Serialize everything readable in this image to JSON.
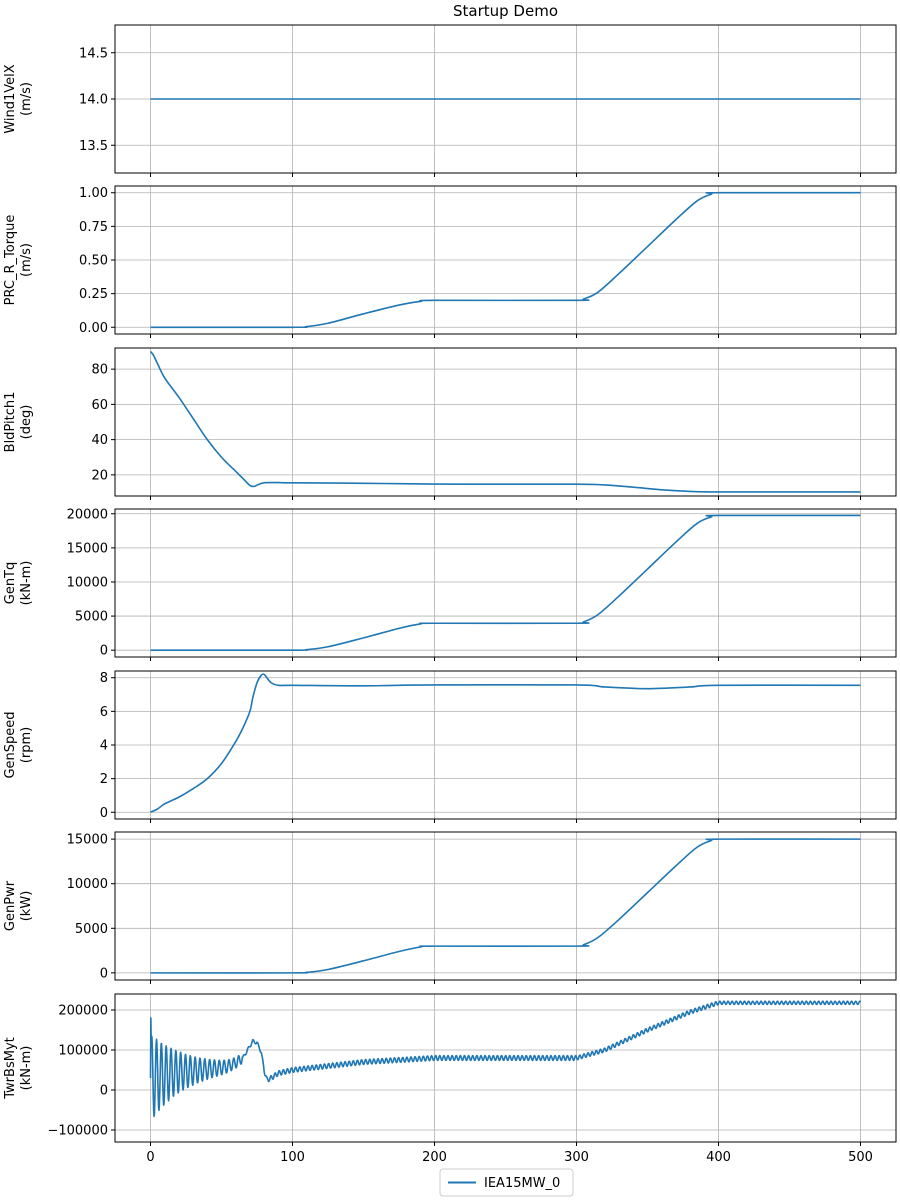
{
  "title": "Startup Demo",
  "legend": {
    "entries": [
      "IEA15MW_0"
    ],
    "position": "bottom-center"
  },
  "chart_data": {
    "type": "line",
    "title": "Startup Demo",
    "xlim": [
      -25,
      525
    ],
    "xticks": [
      0,
      100,
      200,
      300,
      400,
      500
    ],
    "grid": true,
    "series_color": "#1f77b4",
    "panels": [
      {
        "id": "wind",
        "ylabel": [
          "Wind1VelX",
          "(m/s)"
        ],
        "ylim": [
          13.2,
          14.8
        ],
        "yticks": [
          13.5,
          14.0,
          14.5
        ],
        "ytick_labels": [
          "13.5",
          "14.0",
          "14.5"
        ],
        "series": [
          {
            "name": "IEA15MW_0",
            "x": [
              0,
              500
            ],
            "y": [
              14.0,
              14.0
            ]
          }
        ]
      },
      {
        "id": "prc",
        "ylabel": [
          "PRC_R_Torque",
          "(m/s)"
        ],
        "ylim": [
          -0.05,
          1.05
        ],
        "yticks": [
          0.0,
          0.25,
          0.5,
          0.75,
          1.0
        ],
        "ytick_labels": [
          "0.00",
          "0.25",
          "0.50",
          "0.75",
          "1.00"
        ],
        "series": [
          {
            "name": "IEA15MW_0",
            "x": [
              0,
              100,
              110,
              125,
              150,
              175,
              190,
              200,
              300,
              305,
              315,
              330,
              350,
              370,
              385,
              395,
              400,
              500
            ],
            "y": [
              0,
              0,
              0.005,
              0.03,
              0.1,
              0.165,
              0.192,
              0.2,
              0.2,
              0.21,
              0.26,
              0.4,
              0.6,
              0.8,
              0.94,
              0.99,
              1.0,
              1.0
            ]
          }
        ]
      },
      {
        "id": "pitch",
        "ylabel": [
          "BldPitch1",
          "(deg)"
        ],
        "ylim": [
          8,
          92
        ],
        "yticks": [
          20,
          40,
          60,
          80
        ],
        "ytick_labels": [
          "20",
          "40",
          "60",
          "80"
        ],
        "series": [
          {
            "name": "IEA15MW_0",
            "x": [
              0,
              2,
              5,
              10,
              20,
              30,
              40,
              50,
              60,
              65,
              70,
              73,
              76,
              80,
              90,
              100,
              150,
              200,
              250,
              300,
              320,
              340,
              360,
              380,
              400,
              450,
              500
            ],
            "y": [
              90,
              88,
              83,
              75,
              64,
              52,
              40,
              30,
              22,
              18,
              14,
              13.5,
              14.5,
              15.5,
              15.6,
              15.5,
              15.2,
              14.8,
              14.7,
              14.7,
              14.3,
              13,
              11.5,
              10.6,
              10.3,
              10.3,
              10.3
            ]
          }
        ]
      },
      {
        "id": "gentq",
        "ylabel": [
          "GenTq",
          "(kN-m)"
        ],
        "ylim": [
          -1000,
          20700
        ],
        "yticks": [
          0,
          5000,
          10000,
          15000,
          20000
        ],
        "ytick_labels": [
          "0",
          "5000",
          "10000",
          "15000",
          "20000"
        ],
        "series": [
          {
            "name": "IEA15MW_0",
            "x": [
              0,
              100,
              110,
              125,
              150,
              175,
              190,
              200,
              300,
              305,
              315,
              330,
              350,
              370,
              385,
              395,
              400,
              500
            ],
            "y": [
              0,
              0,
              80,
              500,
              1800,
              3200,
              3850,
              3950,
              3950,
              4150,
              5200,
              7950,
              11900,
              15850,
              18600,
              19550,
              19750,
              19750
            ]
          }
        ]
      },
      {
        "id": "genspeed",
        "ylabel": [
          "GenSpeed",
          "(rpm)"
        ],
        "ylim": [
          -0.4,
          8.4
        ],
        "yticks": [
          0,
          2,
          4,
          6,
          8
        ],
        "ytick_labels": [
          "0",
          "2",
          "4",
          "6",
          "8"
        ],
        "series": [
          {
            "name": "IEA15MW_0",
            "x": [
              0,
              5,
              10,
              20,
              30,
              40,
              50,
              60,
              65,
              70,
              72,
              75,
              78,
              80,
              82,
              85,
              90,
              100,
              150,
              200,
              300,
              320,
              350,
              380,
              400,
              500
            ],
            "y": [
              0,
              0.2,
              0.5,
              0.9,
              1.4,
              2.0,
              2.9,
              4.2,
              5.0,
              6.0,
              6.8,
              7.7,
              8.15,
              8.2,
              8.0,
              7.7,
              7.55,
              7.55,
              7.52,
              7.57,
              7.57,
              7.45,
              7.35,
              7.45,
              7.55,
              7.55
            ]
          }
        ]
      },
      {
        "id": "genpwr",
        "ylabel": [
          "GenPwr",
          "(kW)"
        ],
        "ylim": [
          -800,
          15800
        ],
        "yticks": [
          0,
          5000,
          10000,
          15000
        ],
        "ytick_labels": [
          "0",
          "5000",
          "10000",
          "15000"
        ],
        "series": [
          {
            "name": "IEA15MW_0",
            "x": [
              0,
              100,
              110,
              125,
              150,
              175,
              190,
              200,
              300,
              305,
              315,
              330,
              350,
              370,
              385,
              395,
              400,
              500
            ],
            "y": [
              0,
              0,
              60,
              380,
              1350,
              2400,
              2900,
              3000,
              3000,
              3150,
              3950,
              6000,
              9000,
              12000,
              14100,
              14850,
              15000,
              15000
            ]
          }
        ]
      },
      {
        "id": "twrbsmyt",
        "ylabel": [
          "TwrBsMyt",
          "(kN-m)"
        ],
        "ylim": [
          -130000,
          240000
        ],
        "yticks": [
          -100000,
          0,
          100000,
          200000
        ],
        "ytick_labels": [
          "−100000",
          "0",
          "100000",
          "200000"
        ],
        "series": [
          {
            "name": "IEA15MW_0",
            "x": [
              0,
              2,
              5,
              10,
              15,
              20,
              30,
              40,
              50,
              55,
              60,
              65,
              70,
              72,
              75,
              78,
              80,
              82,
              85,
              90,
              100,
              150,
              200,
              250,
              300,
              320,
              350,
              380,
              400,
              450,
              500
            ],
            "y": [
              30000,
              32000,
              35000,
              38000,
              42000,
              45000,
              48000,
              52000,
              56000,
              60000,
              68000,
              80000,
              110000,
              122000,
              118000,
              95000,
              50000,
              25000,
              30000,
              42000,
              50000,
              70000,
              80000,
              80000,
              80000,
              100000,
              150000,
              195000,
              218000,
              218000,
              218000
            ]
          }
        ]
      }
    ]
  }
}
